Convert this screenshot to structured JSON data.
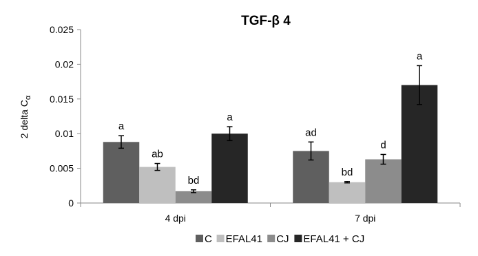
{
  "chart_data": {
    "type": "bar",
    "title": "TGF-β 4",
    "ylabel_main": "2 delta C",
    "ylabel_sub": "α",
    "xlabel": "",
    "categories": [
      "4 dpi",
      "7 dpi"
    ],
    "ylim": [
      0,
      0.025
    ],
    "yticks": [
      0,
      0.005,
      0.01,
      0.015,
      0.02,
      0.025
    ],
    "ytick_labels": [
      "0",
      "0.005",
      "0.01",
      "0.015",
      "0.02",
      "0.025"
    ],
    "grid": false,
    "legend_position": "bottom",
    "series": [
      {
        "name": "C",
        "color": "#5f5f5f",
        "values": [
          0.0088,
          0.0075
        ],
        "errors": [
          0.0009,
          0.0013
        ],
        "labels": [
          "a",
          "ad"
        ]
      },
      {
        "name": "EFAL41",
        "color": "#bfbfbf",
        "values": [
          0.0052,
          0.003
        ],
        "errors": [
          0.0005,
          0.0001
        ],
        "labels": [
          "ab",
          "bd"
        ]
      },
      {
        "name": "CJ",
        "color": "#8c8c8c",
        "values": [
          0.0017,
          0.0063
        ],
        "errors": [
          0.0002,
          0.0007
        ],
        "labels": [
          "bd",
          "d"
        ]
      },
      {
        "name": "EFAL41 + CJ",
        "color": "#262626",
        "values": [
          0.01,
          0.017
        ],
        "errors": [
          0.001,
          0.0028
        ],
        "labels": [
          "a",
          "a"
        ]
      }
    ]
  }
}
